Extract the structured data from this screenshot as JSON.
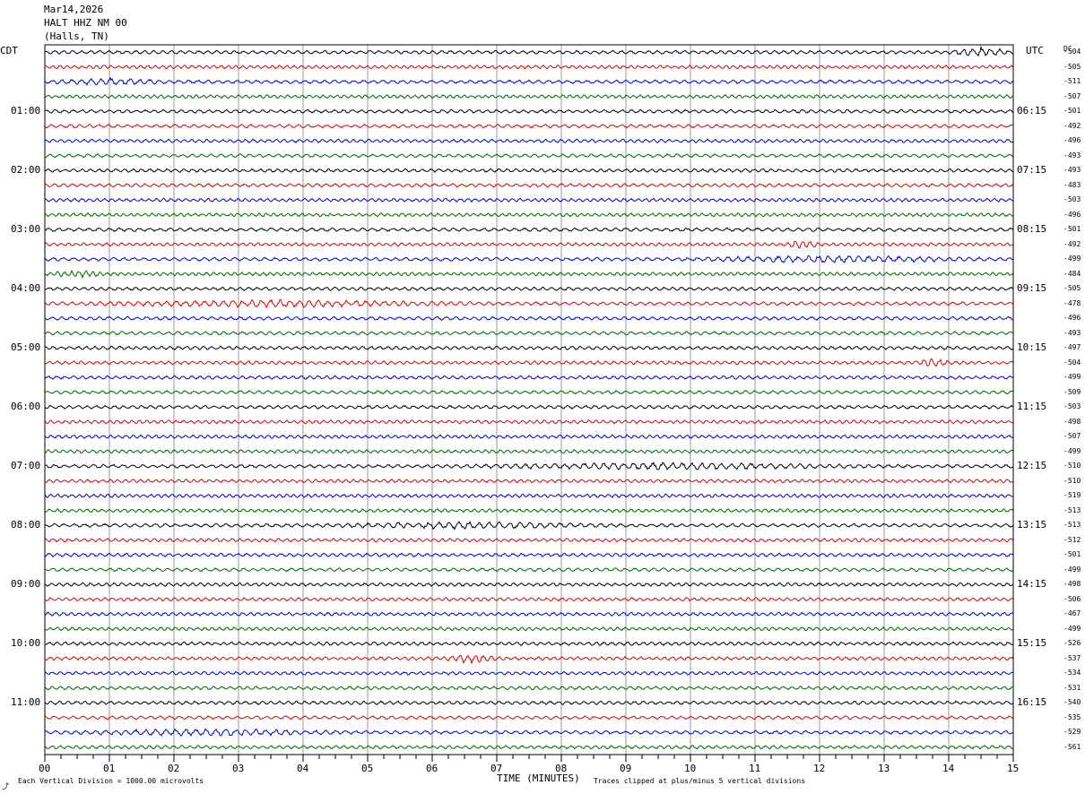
{
  "header": {
    "date": "Mar14,2026",
    "station": "HALT HHZ NM 00",
    "location": "(Halls, TN)"
  },
  "left_axis_title": "CDT",
  "right_axis_title": "UTC",
  "dc_header": "DC",
  "footer": {
    "left": "Each Vertical Division = 1000.00 microvolts",
    "center": "TIME (MINUTES)",
    "right": "Traces clipped at plus/minus 5 vertical divisions",
    "corner_mark": "⤴"
  },
  "colors": {
    "traces": [
      "#000000",
      "#dd0000",
      "#0000cc",
      "#006600"
    ],
    "grid": "#808080",
    "frame": "#000000"
  },
  "chart_data": {
    "type": "line",
    "title": "HALT HHZ NM 00",
    "xlabel": "TIME (MINUTES)",
    "xlim": [
      0,
      15
    ],
    "x_ticks": [
      "00",
      "01",
      "02",
      "03",
      "04",
      "05",
      "06",
      "07",
      "08",
      "09",
      "10",
      "11",
      "12",
      "13",
      "14",
      "15"
    ],
    "rows_per_hour": 4,
    "minutes_per_row": 15,
    "trace_colors_cycle": [
      "black",
      "red",
      "blue",
      "green"
    ],
    "left_hour_labels": [
      "01:00",
      "02:00",
      "03:00",
      "04:00",
      "05:00",
      "06:00",
      "07:00",
      "08:00",
      "09:00",
      "10:00",
      "11:00"
    ],
    "right_hour_labels": [
      "06:15",
      "07:15",
      "08:15",
      "09:15",
      "10:15",
      "11:15",
      "12:15",
      "13:15",
      "14:15",
      "15:15",
      "16:15"
    ],
    "dc_offsets": [
      "-504",
      "-505",
      "-511",
      "-507",
      "-501",
      "-492",
      "-496",
      "-493",
      "-493",
      "-483",
      "-503",
      "-496",
      "-501",
      "-492",
      "-499",
      "-484",
      "-505",
      "-478",
      "-496",
      "-493",
      "-497",
      "-504",
      "-499",
      "-509",
      "-503",
      "-498",
      "-507",
      "-499",
      "-510",
      "-510",
      "-519",
      "-513",
      "-513",
      "-512",
      "-501",
      "-499",
      "-498",
      "-506",
      "-467",
      "-499",
      "-526",
      "-537",
      "-534",
      "-531",
      "-540",
      "-535",
      "-529",
      "-561"
    ],
    "notable_activity": [
      {
        "row": 0,
        "minutes": [
          14,
          15
        ],
        "level": "small burst"
      },
      {
        "row": 2,
        "minutes": [
          0,
          2
        ],
        "level": "elevated noise"
      },
      {
        "row": 13,
        "minutes": [
          11.5,
          12
        ],
        "level": "small event"
      },
      {
        "row": 14,
        "minutes": [
          9.5,
          15
        ],
        "level": "elevated noise"
      },
      {
        "row": 15,
        "minutes": [
          0,
          1
        ],
        "level": "elevated noise"
      },
      {
        "row": 17,
        "minutes": [
          0,
          7
        ],
        "level": "elevated noise"
      },
      {
        "row": 21,
        "minutes": [
          13.5,
          14
        ],
        "level": "small event"
      },
      {
        "row": 28,
        "minutes": [
          6,
          13
        ],
        "level": "elevated noise"
      },
      {
        "row": 32,
        "minutes": [
          4,
          9
        ],
        "level": "elevated noise"
      },
      {
        "row": 41,
        "minutes": [
          6.2,
          7
        ],
        "level": "small burst"
      },
      {
        "row": 46,
        "minutes": [
          0,
          5
        ],
        "level": "elevated noise"
      }
    ]
  }
}
